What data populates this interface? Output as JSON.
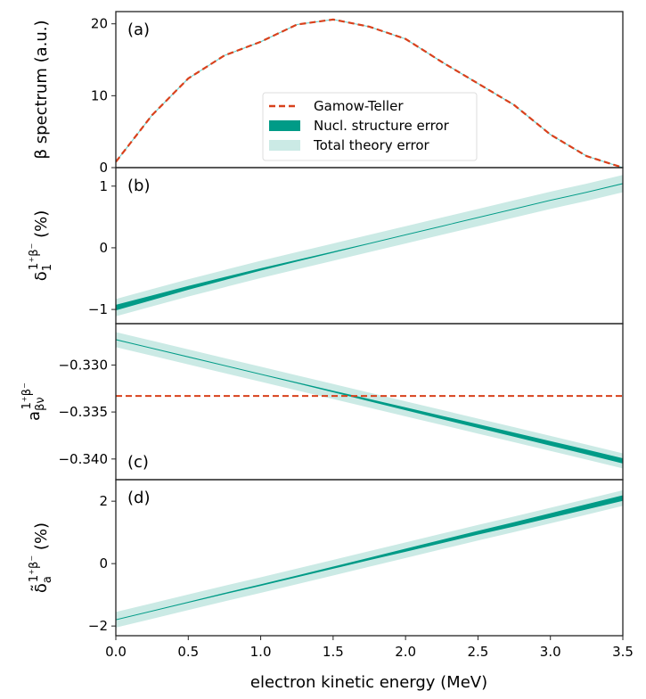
{
  "chart_data": {
    "type": "line",
    "xlabel": "electron kinetic energy (MeV)",
    "xlim": [
      0,
      3.5
    ],
    "xticks": [
      "0.0",
      "0.5",
      "1.0",
      "1.5",
      "2.0",
      "2.5",
      "3.0",
      "3.5"
    ],
    "x": [
      0,
      0.25,
      0.5,
      0.75,
      1.0,
      1.25,
      1.5,
      1.75,
      2.0,
      2.25,
      2.5,
      2.75,
      3.0,
      3.25,
      3.5
    ],
    "colors": {
      "gamow_teller": "#d8411c",
      "nucl_error": "#009b87",
      "total_error": "#cbeae5"
    },
    "legend": {
      "placement": "center",
      "entries": [
        "Gamow-Teller",
        "Nucl. structure error",
        "Total theory error"
      ]
    },
    "panels": [
      {
        "tag": "(a)",
        "ylabel": {
          "base": "β spectrum (a.u.)",
          "sub": "",
          "sup": "",
          "suffix": ""
        },
        "ylim": [
          0,
          21.7
        ],
        "yticks": [
          {
            "v": 0,
            "t": "0"
          },
          {
            "v": 10,
            "t": "10"
          },
          {
            "v": 20,
            "t": "20"
          }
        ],
        "gamow_teller": [
          0.8,
          7.3,
          12.4,
          15.6,
          17.5,
          19.9,
          20.6,
          19.6,
          17.9,
          14.7,
          11.7,
          8.7,
          4.6,
          1.6,
          0
        ],
        "center": [
          0.8,
          7.3,
          12.4,
          15.6,
          17.5,
          19.9,
          20.6,
          19.6,
          17.9,
          14.7,
          11.7,
          8.7,
          4.6,
          1.6,
          0
        ],
        "nucl_error": [
          0,
          0,
          0,
          0,
          0,
          0,
          0,
          0,
          0,
          0,
          0,
          0,
          0,
          0,
          0
        ],
        "total_error": [
          0,
          0,
          0,
          0,
          0,
          0,
          0,
          0,
          0,
          0,
          0,
          0,
          0,
          0,
          0
        ]
      },
      {
        "tag": "(b)",
        "ylabel": {
          "base": "δ",
          "sub": "1",
          "sup": "1⁺β⁻",
          "suffix": "  (%)"
        },
        "ylim": [
          -1.23,
          1.3
        ],
        "yticks": [
          {
            "v": -1,
            "t": "−1"
          },
          {
            "v": 0,
            "t": "0"
          },
          {
            "v": 1,
            "t": "1"
          }
        ],
        "center": [
          -0.97,
          -0.81,
          -0.65,
          -0.5,
          -0.35,
          -0.21,
          -0.07,
          0.07,
          0.21,
          0.35,
          0.49,
          0.63,
          0.77,
          0.9,
          1.04
        ],
        "nucl_error": [
          0.045,
          0.038,
          0.031,
          0.025,
          0.019,
          0.014,
          0.01,
          0.007,
          0.005,
          0.004,
          0.004,
          0.005,
          0.006,
          0.007,
          0.008
        ],
        "total_error": [
          0.14,
          0.14,
          0.14,
          0.14,
          0.14,
          0.14,
          0.14,
          0.14,
          0.14,
          0.14,
          0.14,
          0.14,
          0.14,
          0.14,
          0.14
        ]
      },
      {
        "tag": "(c)",
        "ylabel": {
          "base": "a",
          "sub": "βν",
          "sup": "1⁺β⁻",
          "suffix": ""
        },
        "ylim": [
          -0.3422,
          -0.3256
        ],
        "yticks": [
          {
            "v": -0.33,
            "t": "−0.330"
          },
          {
            "v": -0.335,
            "t": "−0.335"
          },
          {
            "v": -0.34,
            "t": "−0.340"
          }
        ],
        "gamow_teller_const": -0.3333,
        "center": [
          -0.3273,
          -0.32822,
          -0.32914,
          -0.33006,
          -0.33098,
          -0.3319,
          -0.33282,
          -0.33374,
          -0.33466,
          -0.33558,
          -0.3365,
          -0.33742,
          -0.33834,
          -0.33926,
          -0.3402
        ],
        "nucl_error": [
          5e-05,
          5e-05,
          5e-05,
          5e-05,
          5e-05,
          6e-05,
          8e-05,
          0.00012,
          0.00015,
          0.00018,
          0.0002,
          0.00022,
          0.00024,
          0.00026,
          0.00028
        ],
        "total_error": [
          0.0008,
          0.0008,
          0.0008,
          0.0008,
          0.0008,
          0.0008,
          0.0008,
          0.0008,
          0.0008,
          0.0008,
          0.0008,
          0.0008,
          0.0008,
          0.0008,
          0.0008
        ]
      },
      {
        "tag": "(d)",
        "ylabel": {
          "base": "δ̃",
          "sub": "a",
          "sup": "1⁺β⁻",
          "suffix": "  (%)"
        },
        "ylim": [
          -2.31,
          2.69
        ],
        "yticks": [
          {
            "v": -2,
            "t": "−2"
          },
          {
            "v": 0,
            "t": "0"
          },
          {
            "v": 2,
            "t": "2"
          }
        ],
        "center": [
          -1.8,
          -1.52,
          -1.24,
          -0.96,
          -0.69,
          -0.41,
          -0.13,
          0.15,
          0.43,
          0.71,
          0.99,
          1.26,
          1.54,
          1.82,
          2.1
        ],
        "nucl_error": [
          0.01,
          0.01,
          0.015,
          0.02,
          0.025,
          0.03,
          0.035,
          0.04,
          0.05,
          0.055,
          0.06,
          0.07,
          0.075,
          0.085,
          0.09
        ],
        "total_error": [
          0.25,
          0.25,
          0.25,
          0.25,
          0.25,
          0.25,
          0.25,
          0.25,
          0.25,
          0.25,
          0.25,
          0.25,
          0.25,
          0.25,
          0.25
        ]
      }
    ]
  }
}
